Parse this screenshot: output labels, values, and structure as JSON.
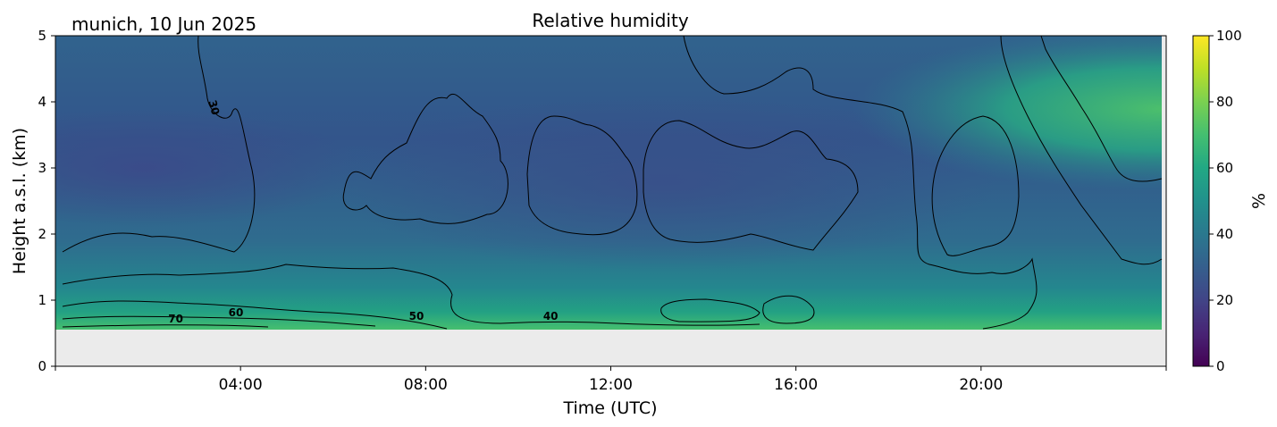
{
  "chart_data": {
    "type": "heatmap",
    "title": "Relative humidity",
    "subtitle": "munich, 10 Jun 2025",
    "xlabel": "Time (UTC)",
    "ylabel": "Height a.s.l. (km)",
    "xlim_hours": [
      0,
      24
    ],
    "ylim_km": [
      0,
      5
    ],
    "x_ticks": [
      {
        "hour": 4,
        "label": "04:00"
      },
      {
        "hour": 8,
        "label": "08:00"
      },
      {
        "hour": 12,
        "label": "12:00"
      },
      {
        "hour": 16,
        "label": "16:00"
      },
      {
        "hour": 20,
        "label": "20:00"
      }
    ],
    "y_ticks": [
      0,
      1,
      2,
      3,
      4,
      5
    ],
    "no_data_below_km": 0.55,
    "colorbar": {
      "label": "%",
      "colormap": "viridis",
      "range": [
        0,
        100
      ],
      "ticks": [
        0,
        20,
        40,
        60,
        80,
        100
      ]
    },
    "contour_labels": [
      {
        "value": "70",
        "hour": 2.6,
        "km": 0.66
      },
      {
        "value": "60",
        "hour": 3.9,
        "km": 0.76
      },
      {
        "value": "50",
        "hour": 7.8,
        "km": 0.7
      },
      {
        "value": "40",
        "hour": 10.7,
        "km": 0.7
      },
      {
        "value": "30",
        "hour": 3.35,
        "km": 3.9
      }
    ],
    "rh_field_description_points": [
      {
        "hour": 1.0,
        "km": 3.0,
        "rh": 25
      },
      {
        "hour": 4.0,
        "km": 2.5,
        "rh": 27
      },
      {
        "hour": 6.0,
        "km": 1.5,
        "rh": 38
      },
      {
        "hour": 12.0,
        "km": 3.0,
        "rh": 33
      },
      {
        "hour": 16.0,
        "km": 2.7,
        "rh": 28
      },
      {
        "hour": 23.0,
        "km": 4.0,
        "rh": 62
      },
      {
        "hour": 3.5,
        "km": 0.6,
        "rh": 72
      }
    ],
    "grid": false
  }
}
